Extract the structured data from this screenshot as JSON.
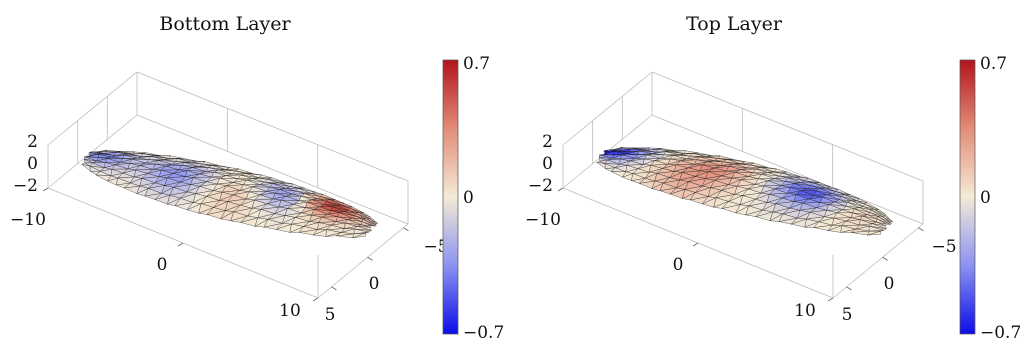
{
  "chart_data": [
    {
      "type": "surface3d",
      "title": "Bottom Layer",
      "x_ticks": [
        "−10",
        "0",
        "10"
      ],
      "y_ticks": [
        "−5",
        "0",
        "5"
      ],
      "z_ticks": [
        "2",
        "0",
        "−2"
      ],
      "colorbar": {
        "min": -0.7,
        "max": 0.7,
        "tick_labels": [
          "0.7",
          "0",
          "−0.7"
        ],
        "colormap": "coolwarm"
      },
      "grid": true,
      "features": [
        {
          "u": 0.32,
          "v": 0.45,
          "value": -0.35
        },
        {
          "u": 0.7,
          "v": 0.6,
          "value": -0.45
        },
        {
          "u": 0.83,
          "v": 0.68,
          "value": 0.7
        },
        {
          "u": 0.05,
          "v": 0.55,
          "value": -0.4
        },
        {
          "u": 0.55,
          "v": 0.35,
          "value": 0.15
        }
      ]
    },
    {
      "type": "surface3d",
      "title": "Top Layer",
      "x_ticks": [
        "−10",
        "0",
        "10"
      ],
      "y_ticks": [
        "−5",
        "0",
        "5"
      ],
      "z_ticks": [
        "2",
        "0",
        "−2"
      ],
      "colorbar": {
        "min": -0.7,
        "max": 0.7,
        "tick_labels": [
          "0.7",
          "0",
          "−0.7"
        ],
        "colormap": "coolwarm"
      },
      "grid": true,
      "features": [
        {
          "u": 0.03,
          "v": 0.62,
          "value": -0.7
        },
        {
          "u": 0.72,
          "v": 0.58,
          "value": -0.55
        },
        {
          "u": 0.4,
          "v": 0.55,
          "value": 0.3
        },
        {
          "u": 0.3,
          "v": 0.25,
          "value": 0.2
        },
        {
          "u": 0.88,
          "v": 0.45,
          "value": 0.1
        }
      ]
    }
  ],
  "colors": {
    "cool": "#1a1ae6",
    "neutral": "#f2e6d0",
    "warm": "#b0141c",
    "mesh": "#000000",
    "box": "#bdbdbd"
  }
}
